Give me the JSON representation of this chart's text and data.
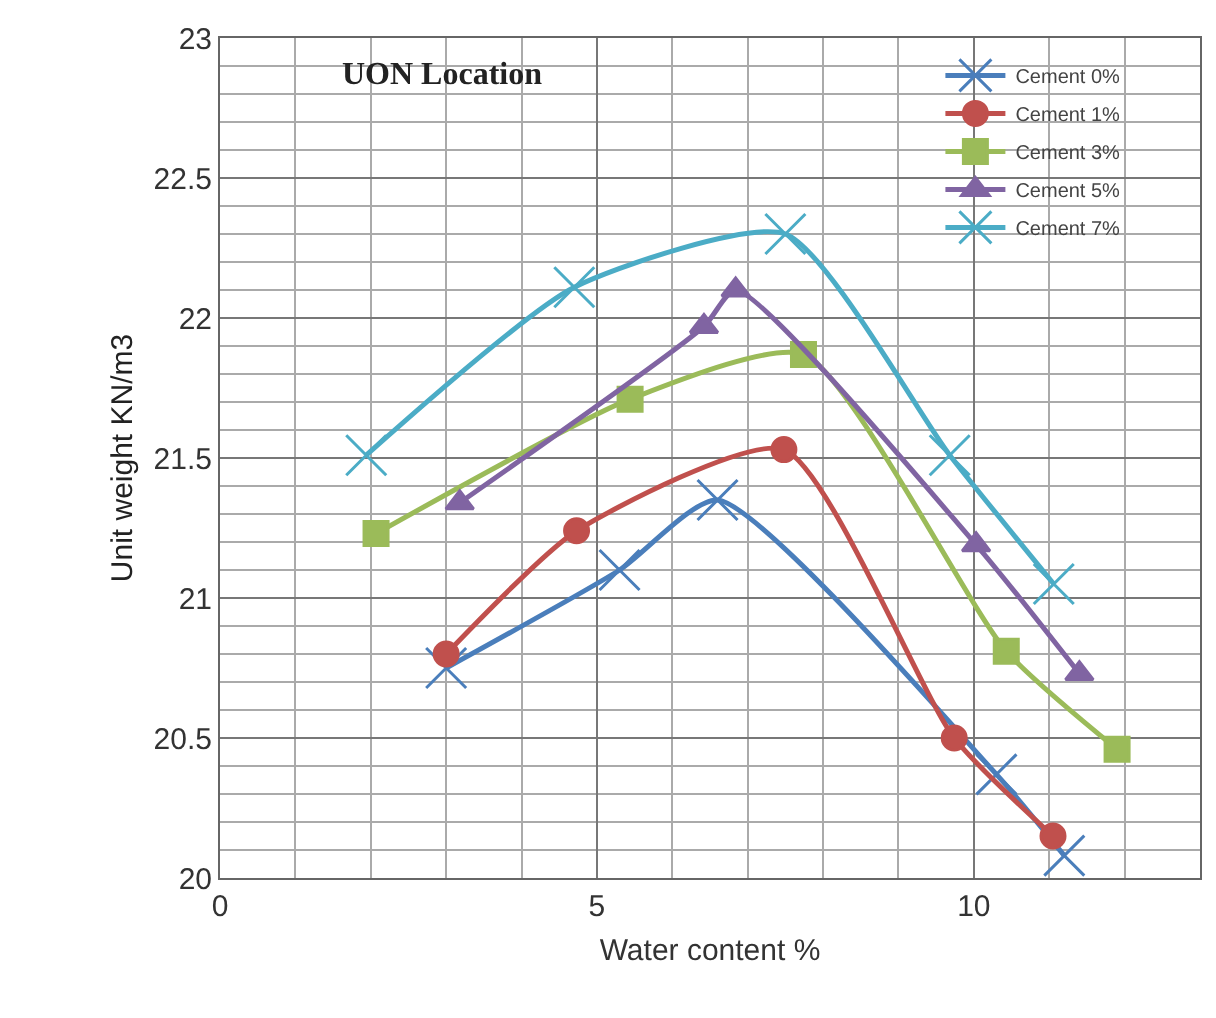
{
  "chart_data": {
    "type": "line",
    "xlabel": "Water content %",
    "ylabel": "Unit weight KN/m3",
    "annotations": [
      "UON Location"
    ],
    "xlim": [
      0,
      13
    ],
    "xticks": [
      0,
      5,
      10
    ],
    "ylim": [
      20,
      23
    ],
    "yticks": [
      20,
      20.5,
      21,
      21.5,
      22,
      22.5,
      23
    ],
    "grid": true,
    "legend": "top right",
    "series": [
      {
        "name": "Cement 0%",
        "color": "#4a7ebb",
        "marker": "cross",
        "x": [
          3.0,
          5.3,
          6.6,
          10.3,
          11.2
        ],
        "values": [
          20.75,
          21.1,
          21.35,
          20.37,
          20.08
        ]
      },
      {
        "name": "Cement 1%",
        "color": "#c0504d",
        "marker": "circle",
        "x": [
          3.0,
          4.73,
          7.48,
          9.74,
          11.05
        ],
        "values": [
          20.8,
          21.24,
          21.53,
          20.5,
          20.15
        ]
      },
      {
        "name": "Cement 3%",
        "color": "#9bbb59",
        "marker": "square",
        "x": [
          2.07,
          5.44,
          7.74,
          10.43,
          11.9
        ],
        "values": [
          21.23,
          21.71,
          21.87,
          20.81,
          20.46
        ]
      },
      {
        "name": "Cement 5%",
        "color": "#8064a2",
        "marker": "triangle",
        "x": [
          3.18,
          6.42,
          6.84,
          10.03,
          11.4
        ],
        "values": [
          21.34,
          21.97,
          22.1,
          21.19,
          20.73
        ]
      },
      {
        "name": "Cement 7%",
        "color": "#4bacc6",
        "marker": "cross",
        "x": [
          1.94,
          4.7,
          7.5,
          9.68,
          11.06
        ],
        "values": [
          21.51,
          22.11,
          22.3,
          21.51,
          21.05
        ]
      }
    ]
  }
}
